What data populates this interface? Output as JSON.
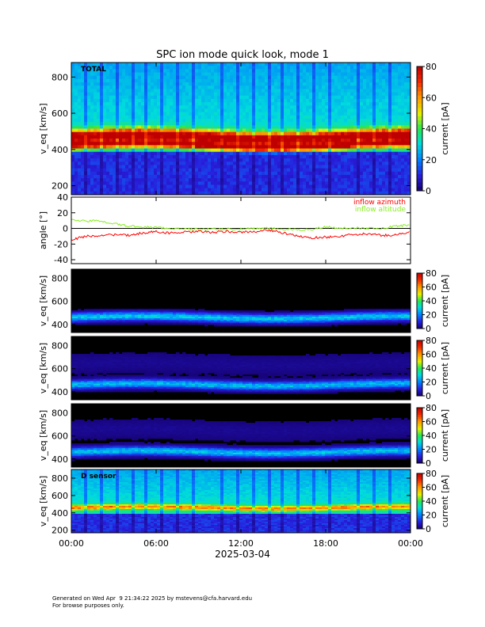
{
  "footer": {
    "line1": "Generated on Wed Apr  9 21:34:22 2025 by mstevens@cfa.harvard.edu",
    "line2": "For browse purposes only."
  },
  "chart_data": [
    {
      "type": "heatmap",
      "title": "SPC ion mode quick look, mode 1",
      "label": "TOTAL",
      "ylabel": "v_eq [km/s]",
      "ylim": [
        150,
        880
      ],
      "yticks": [
        200,
        400,
        600,
        800
      ],
      "colorbar": {
        "label": "current [pA]",
        "range": [
          0,
          80
        ],
        "ticks": [
          0,
          20,
          40,
          60,
          80
        ]
      },
      "background": "level",
      "bands": [
        {
          "center": 470,
          "width": 35,
          "level": 58,
          "name": "core beam"
        },
        {
          "center": 420,
          "width": 20,
          "level": 45,
          "name": "lower core"
        }
      ]
    },
    {
      "type": "line",
      "ylabel": "angle [°]",
      "ylim": [
        -45,
        40
      ],
      "yticks": [
        -40,
        -20,
        0,
        20,
        40
      ],
      "series": [
        {
          "name": "inflow azimuth",
          "color": "#ff0000",
          "x": [
            0,
            1,
            2,
            3,
            4,
            5,
            6,
            7,
            8,
            9,
            10,
            11,
            12,
            13,
            14,
            15,
            16,
            17,
            18,
            19,
            20,
            21,
            22,
            23,
            24
          ],
          "y": [
            -15,
            -10,
            -9,
            -8,
            -9,
            -6,
            -4,
            -6,
            -5,
            -4,
            -5,
            -4,
            -5,
            -4,
            -2,
            -6,
            -10,
            -12,
            -11,
            -10,
            -8,
            -7,
            -9,
            -8,
            -5
          ]
        },
        {
          "name": "inflow altitude",
          "color": "#88ee22",
          "x": [
            0,
            1,
            2,
            3,
            4,
            5,
            6,
            7,
            8,
            9,
            10,
            11,
            12,
            13,
            14,
            15,
            16,
            17,
            18,
            19,
            20,
            21,
            22,
            23,
            24
          ],
          "y": [
            12,
            9,
            10,
            6,
            3,
            2,
            1,
            0,
            -1,
            -1,
            -1,
            -1,
            -1,
            0,
            0,
            -1,
            -2,
            -1,
            2,
            0,
            1,
            0,
            0,
            3,
            5
          ]
        }
      ],
      "x_range_hours": [
        0,
        24
      ]
    },
    {
      "type": "heatmap",
      "label": "",
      "ylabel": "v_eq [km/s]",
      "ylim": [
        330,
        880
      ],
      "yticks": [
        400,
        600,
        800
      ],
      "colorbar": {
        "label": "current [pA]",
        "range": [
          0,
          80
        ],
        "ticks": [
          0,
          20,
          40,
          60,
          80
        ]
      },
      "background": "black",
      "bands": [
        {
          "center": 460,
          "width": 38,
          "level": 28
        }
      ]
    },
    {
      "type": "heatmap",
      "label": "",
      "ylabel": "v_eq [km/s]",
      "ylim": [
        330,
        880
      ],
      "yticks": [
        400,
        600,
        800
      ],
      "colorbar": {
        "label": "current [pA]",
        "range": [
          0,
          80
        ],
        "ticks": [
          0,
          20,
          40,
          60,
          80
        ]
      },
      "background": "black",
      "bands": [
        {
          "center": 460,
          "width": 38,
          "level": 26
        },
        {
          "center": 640,
          "width": 90,
          "level": 3
        }
      ]
    },
    {
      "type": "heatmap",
      "label": "",
      "ylabel": "v_eq [km/s]",
      "ylim": [
        330,
        880
      ],
      "yticks": [
        400,
        600,
        800
      ],
      "colorbar": {
        "label": "current [pA]",
        "range": [
          0,
          80
        ],
        "ticks": [
          0,
          20,
          40,
          60,
          80
        ]
      },
      "background": "black",
      "bands": [
        {
          "center": 460,
          "width": 38,
          "level": 27
        },
        {
          "center": 650,
          "width": 90,
          "level": 3
        }
      ]
    },
    {
      "type": "heatmap",
      "label": "D sensor",
      "ylabel": "v_eq [km/s]",
      "ylim": [
        170,
        900
      ],
      "yticks": [
        200,
        400,
        600,
        800
      ],
      "colorbar": {
        "label": "current [pA]",
        "range": [
          0,
          80
        ],
        "ticks": [
          0,
          20,
          40,
          60,
          80
        ]
      },
      "background": "level",
      "bands": [
        {
          "center": 460,
          "width": 30,
          "level": 30
        }
      ]
    }
  ],
  "xaxis": {
    "ticks": [
      "00:00",
      "06:00",
      "12:00",
      "18:00",
      "00:00"
    ],
    "date": "2025-03-04"
  }
}
